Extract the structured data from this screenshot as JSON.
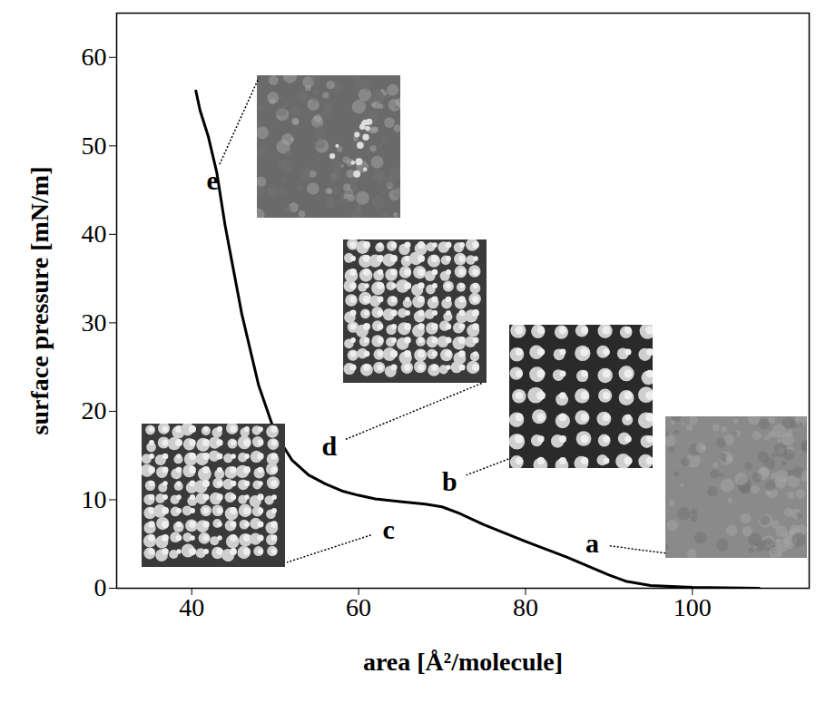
{
  "chart_data": {
    "type": "line",
    "x_label": "area [Å²/molecule]",
    "y_label": "surface pressure [mN/m]",
    "x": [
      40.5,
      41,
      42,
      43,
      44,
      45,
      46,
      48,
      50,
      52,
      54,
      56,
      58,
      60,
      62,
      65,
      68,
      70,
      72,
      75,
      80,
      85,
      90,
      92,
      95,
      100,
      108
    ],
    "values": [
      56.2,
      54,
      51,
      47,
      41,
      36,
      31,
      23,
      17.5,
      14.5,
      12.8,
      11.8,
      11,
      10.5,
      10.1,
      9.8,
      9.5,
      9.2,
      8.5,
      7.2,
      5.3,
      3.5,
      1.5,
      0.8,
      0.3,
      0.1,
      0
    ],
    "color": "#000000",
    "xlim": [
      31,
      114
    ],
    "ylim": [
      0,
      65
    ],
    "xticks": [
      40,
      60,
      80,
      100
    ],
    "yticks": [
      0,
      10,
      20,
      30,
      40,
      50,
      60
    ],
    "grid": false,
    "annotations": [
      {
        "text": "a",
        "x": 88,
        "y": 5
      },
      {
        "text": "b",
        "x": 70.9,
        "y": 12
      },
      {
        "text": "c",
        "x": 63.6,
        "y": 6.6
      },
      {
        "text": "d",
        "x": 56.5,
        "y": 16
      },
      {
        "text": "e",
        "x": 42.5,
        "y": 46
      }
    ]
  }
}
